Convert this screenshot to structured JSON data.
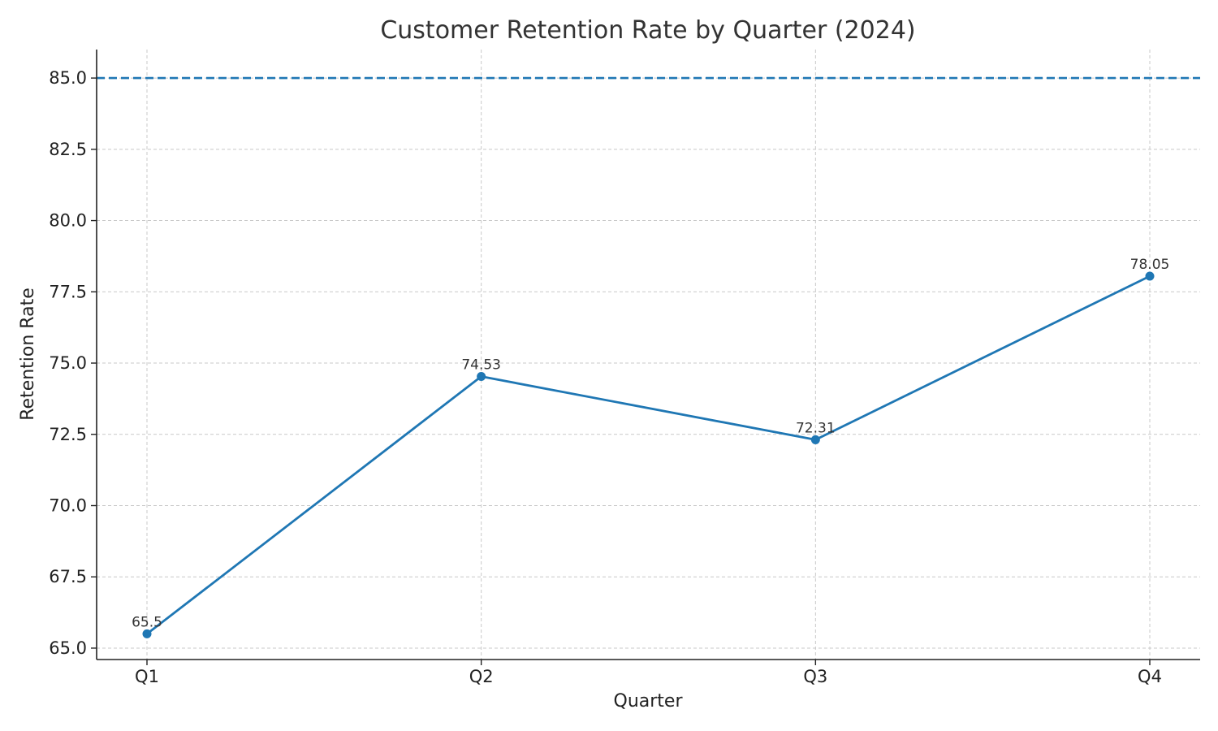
{
  "chart_data": {
    "type": "line",
    "title": "Customer Retention Rate by Quarter (2024)",
    "xlabel": "Quarter",
    "ylabel": "Retention Rate",
    "categories": [
      "Q1",
      "Q2",
      "Q3",
      "Q4"
    ],
    "series": [
      {
        "values": [
          65.5,
          74.53,
          72.31,
          78.05
        ],
        "color": "#1f77b4",
        "marker": "circle",
        "data_labels": [
          "65.5",
          "74.53",
          "72.31",
          "78.05"
        ]
      }
    ],
    "reference_line": {
      "value": 85.0,
      "style": "dashed",
      "color": "#1f77b4"
    },
    "ylim": [
      64.6,
      86.0
    ],
    "y_ticks": [
      65.0,
      67.5,
      70.0,
      72.5,
      75.0,
      77.5,
      80.0,
      82.5,
      85.0
    ],
    "y_tick_labels": [
      "65.0",
      "67.5",
      "70.0",
      "72.5",
      "75.0",
      "77.5",
      "80.0",
      "82.5",
      "85.0"
    ],
    "grid": true,
    "grid_style": "dashed",
    "legend": "none"
  }
}
